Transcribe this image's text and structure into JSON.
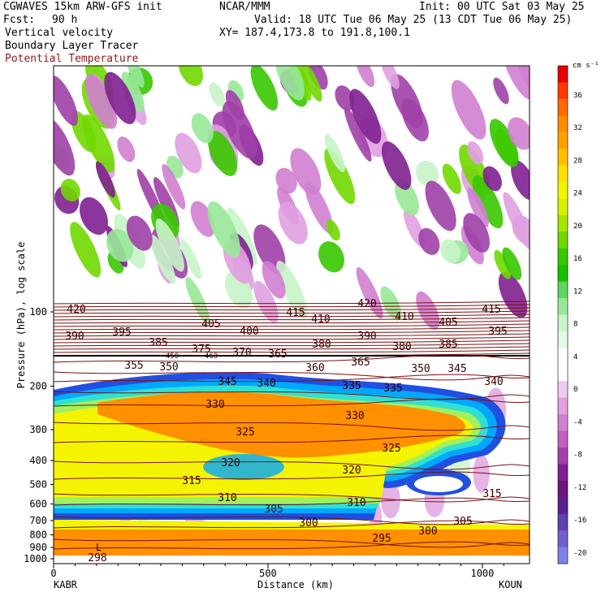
{
  "header": {
    "model": "CGWAVES 15km ARW-GFS init",
    "org": "NCAR/MMM",
    "init": "Init: 00 UTC Sat 03 May 25",
    "fcst_label": "Fcst:",
    "fcst_value": "90 h",
    "valid": "Valid: 18 UTC Tue 06 May 25 (13 CDT Tue 06 May 25)",
    "field1": "Vertical velocity",
    "xy": "XY= 187.4,173.8 to 191.8,100.1",
    "field2": "Boundary Layer Tracer",
    "field3": "Potential Temperature"
  },
  "colors": {
    "theta_contour": "#7a1010",
    "label": "#8b1a1a"
  },
  "chart_data": {
    "type": "heatmap",
    "title": "Vertical velocity / Boundary Layer Tracer / Potential Temperature",
    "ylabel": "Pressure (hPa), log scale",
    "xlabel": "Distance (km)",
    "x_ticks": [
      0,
      500,
      1000
    ],
    "x_range": [
      0,
      1110
    ],
    "y_ticks": [
      100,
      200,
      300,
      400,
      500,
      600,
      700,
      800,
      900,
      1000
    ],
    "y_ticks_labeled": [
      "100",
      "200",
      "300",
      "400",
      "500",
      "600",
      "700",
      "800",
      "900",
      "1000"
    ],
    "y_scale": "log",
    "left_endpoint": "KABR",
    "right_endpoint": "KOUN",
    "colorbar": {
      "unit": "cm s⁻¹",
      "labels": [
        36,
        32,
        28,
        24,
        20,
        16,
        12,
        8,
        4,
        0,
        -4,
        -8,
        -12,
        -16,
        -20
      ],
      "colors": [
        "#e80000",
        "#ff3a00",
        "#ff6a00",
        "#ff8c00",
        "#ffa200",
        "#ffc000",
        "#ffe000",
        "#f4f400",
        "#d8f000",
        "#a8e400",
        "#70d800",
        "#38c800",
        "#18c000",
        "#60d460",
        "#98e898",
        "#c8f4c8",
        "#e4fae4",
        "#ffffff",
        "#ffffff",
        "#f0c8f0",
        "#e0a0e0",
        "#d080d0",
        "#c060c0",
        "#a040a8",
        "#802090",
        "#6a1880",
        "#5a2090",
        "#6040b0",
        "#7060d0",
        "#8080e8"
      ]
    },
    "theta_labels": [
      "420",
      "415",
      "410",
      "405",
      "400",
      "395",
      "390",
      "385",
      "380",
      "375",
      "370",
      "365",
      "360",
      "355",
      "350",
      "345",
      "340",
      "335",
      "330",
      "325",
      "320",
      "315",
      "310",
      "305",
      "300",
      "295",
      "298"
    ],
    "theta_small_labels": [
      "450",
      "460"
    ],
    "surface_marker": "L",
    "tracer_colors": [
      "#2050e0",
      "#00a8ff",
      "#30e0d0",
      "#a0f060",
      "#f4f400",
      "#ff9000"
    ]
  }
}
